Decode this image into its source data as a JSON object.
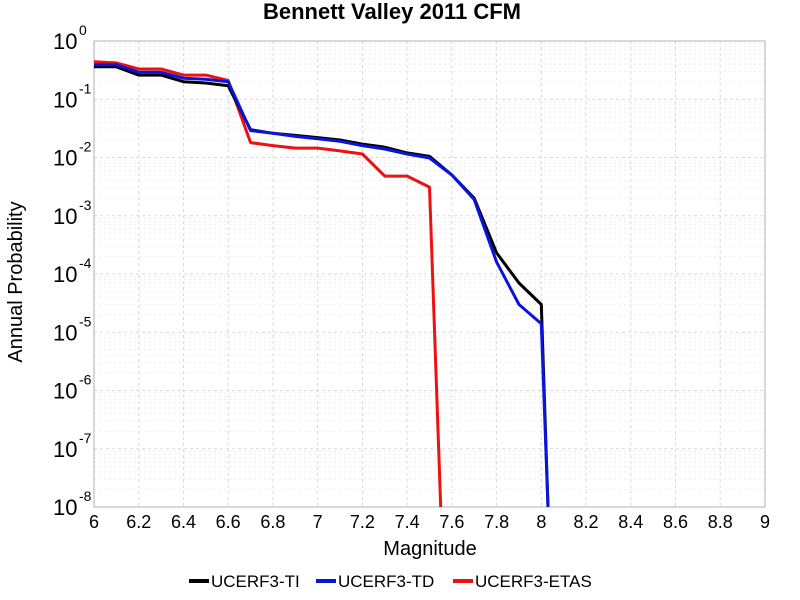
{
  "chart_data": {
    "type": "line",
    "title": "Bennett Valley 2011 CFM",
    "xlabel": "Magnitude",
    "ylabel": "Annual Probability",
    "xlim": [
      6,
      9
    ],
    "ylim": [
      1e-08,
      1
    ],
    "yscale": "log",
    "grid": true,
    "legend_position": "bottom",
    "x_ticks": [
      {
        "value": 6,
        "label": "6"
      },
      {
        "value": 6.2,
        "label": "6.2"
      },
      {
        "value": 6.4,
        "label": "6.4"
      },
      {
        "value": 6.6,
        "label": "6.6"
      },
      {
        "value": 6.8,
        "label": "6.8"
      },
      {
        "value": 7,
        "label": "7"
      },
      {
        "value": 7.2,
        "label": "7.2"
      },
      {
        "value": 7.4,
        "label": "7.4"
      },
      {
        "value": 7.6,
        "label": "7.6"
      },
      {
        "value": 7.8,
        "label": "7.8"
      },
      {
        "value": 8,
        "label": "8"
      },
      {
        "value": 8.2,
        "label": "8.2"
      },
      {
        "value": 8.4,
        "label": "8.4"
      },
      {
        "value": 8.6,
        "label": "8.6"
      },
      {
        "value": 8.8,
        "label": "8.8"
      },
      {
        "value": 9,
        "label": "9"
      }
    ],
    "y_ticks": [
      {
        "exponent": 0,
        "base": "10",
        "exp_label": "0"
      },
      {
        "exponent": -1,
        "base": "10",
        "exp_label": "-1"
      },
      {
        "exponent": -2,
        "base": "10",
        "exp_label": "-2"
      },
      {
        "exponent": -3,
        "base": "10",
        "exp_label": "-3"
      },
      {
        "exponent": -4,
        "base": "10",
        "exp_label": "-4"
      },
      {
        "exponent": -5,
        "base": "10",
        "exp_label": "-5"
      },
      {
        "exponent": -6,
        "base": "10",
        "exp_label": "-6"
      },
      {
        "exponent": -7,
        "base": "10",
        "exp_label": "-7"
      },
      {
        "exponent": -8,
        "base": "10",
        "exp_label": "-8"
      }
    ],
    "series": [
      {
        "name": "UCERF3-ETAS",
        "color": "#ee1111",
        "x": [
          6.0,
          6.1,
          6.2,
          6.3,
          6.4,
          6.5,
          6.6,
          6.7,
          6.8,
          6.9,
          7.0,
          7.1,
          7.2,
          7.3,
          7.4,
          7.5,
          7.55
        ],
        "y": [
          0.44,
          0.42,
          0.33,
          0.33,
          0.26,
          0.26,
          0.21,
          0.018,
          0.016,
          0.0145,
          0.0145,
          0.013,
          0.0115,
          0.0048,
          0.0048,
          0.0031,
          1e-08
        ]
      },
      {
        "name": "UCERF3-TI",
        "color": "#000000",
        "x": [
          6.0,
          6.1,
          6.2,
          6.3,
          6.4,
          6.5,
          6.6,
          6.7,
          6.8,
          6.9,
          7.0,
          7.1,
          7.2,
          7.3,
          7.4,
          7.5,
          7.6,
          7.7,
          7.8,
          7.9,
          8.0,
          8.03
        ],
        "y": [
          0.36,
          0.36,
          0.26,
          0.26,
          0.2,
          0.19,
          0.17,
          0.03,
          0.026,
          0.024,
          0.022,
          0.02,
          0.017,
          0.015,
          0.012,
          0.0105,
          0.005,
          0.002,
          0.00023,
          7e-05,
          3e-05,
          1e-08
        ]
      },
      {
        "name": "UCERF3-TD",
        "color": "#0a14dc",
        "x": [
          6.0,
          6.1,
          6.2,
          6.3,
          6.4,
          6.5,
          6.6,
          6.7,
          6.8,
          6.9,
          7.0,
          7.1,
          7.2,
          7.3,
          7.4,
          7.5,
          7.6,
          7.7,
          7.8,
          7.9,
          8.0,
          8.03
        ],
        "y": [
          0.39,
          0.39,
          0.29,
          0.29,
          0.23,
          0.22,
          0.2,
          0.029,
          0.026,
          0.023,
          0.021,
          0.019,
          0.016,
          0.014,
          0.0115,
          0.0098,
          0.005,
          0.0019,
          0.00016,
          3e-05,
          1.4e-05,
          1e-08
        ]
      }
    ],
    "legend": [
      {
        "label": "UCERF3-TI",
        "color": "#000000"
      },
      {
        "label": "UCERF3-TD",
        "color": "#0a14dc"
      },
      {
        "label": "UCERF3-ETAS",
        "color": "#ee1111"
      }
    ]
  }
}
